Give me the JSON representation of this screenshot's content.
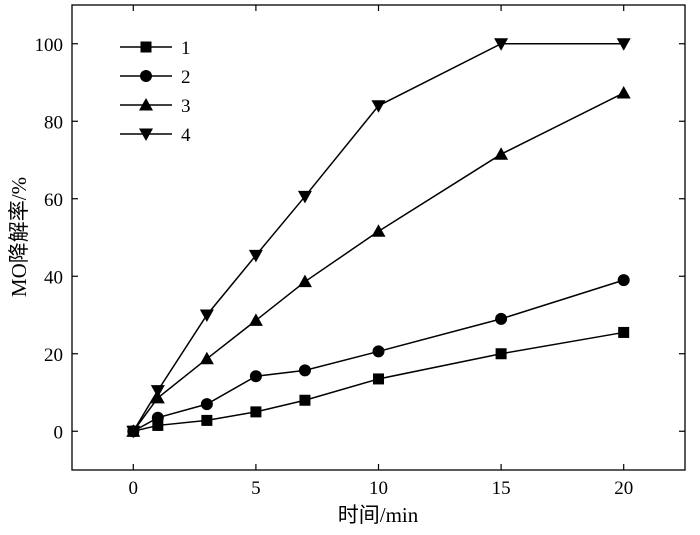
{
  "chart_data": {
    "type": "line",
    "xlabel": "时间/min",
    "ylabel": "MO降解率/%",
    "xlim": [
      -2.5,
      22.5
    ],
    "ylim": [
      -10,
      110
    ],
    "xticks": [
      0,
      5,
      10,
      15,
      20
    ],
    "yticks": [
      0,
      20,
      40,
      60,
      80,
      100
    ],
    "grid": false,
    "legend_position": "top-left",
    "x": [
      0,
      1,
      3,
      5,
      7,
      10,
      15,
      20
    ],
    "series": [
      {
        "name": "1",
        "marker": "square",
        "values": [
          0,
          1.5,
          2.8,
          5.0,
          8.0,
          13.5,
          20.0,
          25.5
        ]
      },
      {
        "name": "2",
        "marker": "circle",
        "values": [
          0,
          3.5,
          7.0,
          14.2,
          15.7,
          20.6,
          29.0,
          39.0
        ]
      },
      {
        "name": "3",
        "marker": "triangle-up",
        "values": [
          0,
          8.6,
          18.7,
          28.6,
          38.6,
          51.6,
          71.5,
          87.3
        ]
      },
      {
        "name": "4",
        "marker": "triangle-down",
        "values": [
          0,
          10.5,
          30.0,
          45.4,
          60.6,
          84.0,
          100.0,
          100.0
        ]
      }
    ]
  }
}
